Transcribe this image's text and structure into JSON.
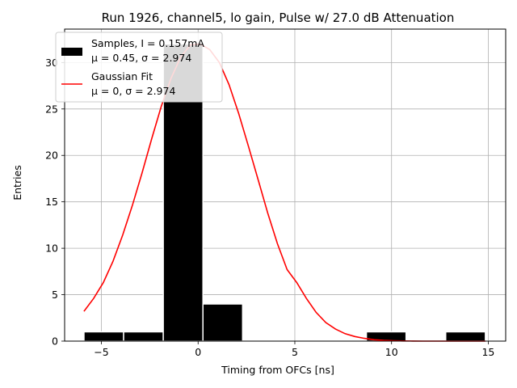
{
  "chart_data": {
    "type": "bar",
    "title": "Run 1926, channel5, lo gain, Pulse w/ 27.0 dB Attenuation",
    "xlabel": "Timing from OFCs [ns]",
    "ylabel": "Entries",
    "xlim": [
      -6.9,
      15.9
    ],
    "ylim": [
      0,
      33.6
    ],
    "xticks": [
      -5,
      0,
      5,
      10,
      15
    ],
    "yticks": [
      0,
      5,
      10,
      15,
      20,
      25,
      30
    ],
    "grid": true,
    "legend_position": "top-left",
    "histogram": {
      "name": "Samples, I = 0.157mA",
      "stats": "μ = 0.45, σ = 2.974",
      "color": "#000000",
      "edge_color": "#ffffff",
      "bins": [
        {
          "x0": -5.9,
          "x1": -3.85,
          "count": 1
        },
        {
          "x0": -3.85,
          "x1": -1.8,
          "count": 1
        },
        {
          "x0": -1.8,
          "x1": 0.25,
          "count": 32
        },
        {
          "x0": 0.25,
          "x1": 2.3,
          "count": 4
        },
        {
          "x0": 8.7,
          "x1": 10.75,
          "count": 1
        },
        {
          "x0": 12.8,
          "x1": 14.85,
          "count": 1
        }
      ]
    },
    "fit": {
      "name": "Gaussian Fit",
      "stats": "μ = 0, σ = 2.974",
      "color": "#ff0000",
      "x": [
        -5.9,
        -5.4,
        -4.9,
        -4.4,
        -3.9,
        -3.4,
        -2.9,
        -2.4,
        -1.9,
        -1.4,
        -0.9,
        -0.4,
        0.1,
        0.6,
        1.1,
        1.6,
        2.1,
        2.6,
        3.1,
        3.6,
        4.1,
        4.6,
        5.1,
        5.6,
        6.1,
        6.6,
        7.1,
        7.6,
        8.1,
        8.6,
        9.1,
        9.6,
        10.1,
        10.6,
        11.1,
        11.6,
        12.1,
        12.6,
        13.1,
        13.6,
        14.1,
        14.6,
        14.85
      ],
      "y": [
        3.2,
        4.6,
        6.3,
        8.6,
        11.4,
        14.6,
        18.1,
        21.8,
        25.3,
        28.3,
        30.6,
        31.9,
        32.0,
        31.4,
        30.0,
        27.6,
        24.5,
        21.0,
        17.4,
        13.8,
        10.5,
        7.7,
        6.3,
        4.6,
        3.1,
        2.0,
        1.3,
        0.8,
        0.5,
        0.3,
        0.15,
        0.08,
        0.04,
        0.02,
        0.01,
        0.0,
        0.0,
        0.0,
        0.0,
        0.0,
        0.0,
        0.0,
        0.0
      ]
    }
  }
}
